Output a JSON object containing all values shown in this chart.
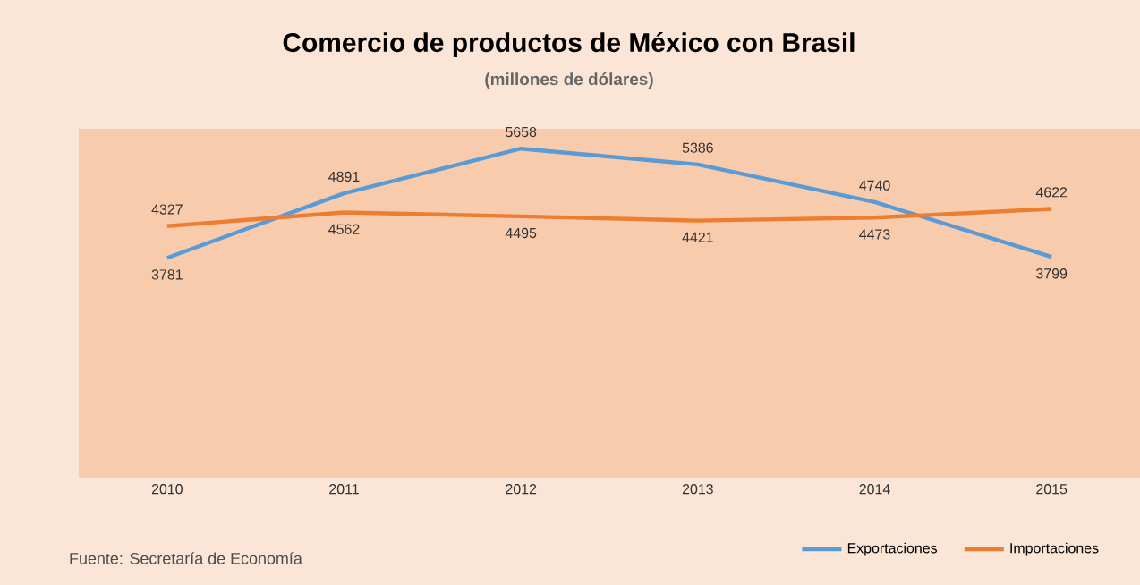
{
  "chart_data": {
    "type": "line",
    "title": "Comercio de productos de México con Brasil",
    "subtitle": "(millones de dólares)",
    "categories": [
      "2010",
      "2011",
      "2012",
      "2013",
      "2014",
      "2015"
    ],
    "series": [
      {
        "name": "Exportaciones",
        "color": "#5b9bd5",
        "values": [
          3781,
          4891,
          5658,
          5386,
          4740,
          3799
        ]
      },
      {
        "name": "Importaciones",
        "color": "#ed7d31",
        "values": [
          4327,
          4562,
          4495,
          4421,
          4473,
          4622
        ]
      }
    ],
    "ylim": [
      0,
      6000
    ],
    "data_labels": true,
    "legend": "bottom right",
    "grid": false,
    "marker": "none",
    "line_style": "solid",
    "tick_labels": "x",
    "annotations": [
      "Fuente: Secretaría de Economía"
    ]
  }
}
